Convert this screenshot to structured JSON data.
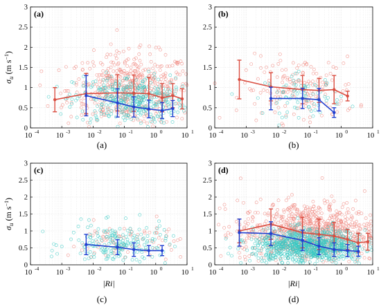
{
  "colors": {
    "red": "#d94c3f",
    "blue": "#1f3fd1",
    "cyan": "#37c9c3",
    "salmon": "#f0867e",
    "grid": "#d9d9d9"
  },
  "shared": {
    "ylabel_sym": "σ",
    "ylabel_sub": "u",
    "ylabel_unit": " (m s",
    "ylabel_exp": "−1",
    "ylabel_close": ")",
    "xlabel": "|Ri|",
    "x_ticks": [
      "10",
      "10",
      "10",
      "10",
      "10",
      "10"
    ],
    "x_exps": [
      "-4",
      "-3",
      "-2",
      "-1",
      "0",
      "1"
    ],
    "y_ticks": [
      "0",
      "0.5",
      "1",
      "1.5",
      "2",
      "2.5",
      "3"
    ]
  },
  "chart_data": [
    {
      "type": "scatter",
      "panel_label": "(a)",
      "caption": "(a)",
      "xscale": "log",
      "xlim": [
        0.0001,
        10
      ],
      "ylim": [
        0,
        3
      ],
      "grid": true,
      "cloud": {
        "red": {
          "center_logx": -0.8,
          "spread_logx": 1.0,
          "y_mean": 0.95,
          "y_sd": 0.45,
          "n": 520
        },
        "cyan": {
          "center_logx": -0.8,
          "spread_logx": 0.9,
          "y_mean": 0.7,
          "y_sd": 0.3,
          "n": 380
        }
      },
      "series": [
        {
          "color": "red",
          "x": [
            0.0006,
            0.006,
            0.06,
            0.2,
            0.6,
            1.6,
            3.5,
            7
          ],
          "y": [
            0.7,
            0.85,
            0.87,
            0.86,
            0.85,
            0.75,
            0.8,
            0.72
          ],
          "err": [
            0.3,
            0.5,
            0.45,
            0.45,
            0.4,
            0.35,
            0.3,
            0.25
          ]
        },
        {
          "color": "blue",
          "x": [
            0.006,
            0.06,
            0.2,
            0.6,
            1.6,
            3.5
          ],
          "y": [
            0.8,
            0.62,
            0.52,
            0.47,
            0.43,
            0.48
          ],
          "err": [
            0.5,
            0.35,
            0.25,
            0.22,
            0.2,
            0.2
          ]
        }
      ]
    },
    {
      "type": "scatter",
      "panel_label": "(b)",
      "caption": "(b)",
      "xscale": "log",
      "xlim": [
        0.0001,
        10
      ],
      "ylim": [
        0,
        3
      ],
      "grid": true,
      "cloud": {
        "red": {
          "center_logx": -1.3,
          "spread_logx": 0.9,
          "y_mean": 0.95,
          "y_sd": 0.4,
          "n": 170
        },
        "cyan": {
          "center_logx": -1.2,
          "spread_logx": 0.6,
          "y_mean": 0.8,
          "y_sd": 0.25,
          "n": 80
        }
      },
      "series": [
        {
          "color": "red",
          "x": [
            0.0006,
            0.006,
            0.06,
            0.2,
            0.6,
            1.6
          ],
          "y": [
            1.2,
            1.02,
            0.95,
            0.93,
            0.95,
            0.79
          ],
          "err": [
            0.48,
            0.35,
            0.35,
            0.3,
            0.35,
            0.12
          ]
        },
        {
          "color": "blue",
          "x": [
            0.006,
            0.06,
            0.2,
            0.6
          ],
          "y": [
            0.73,
            0.73,
            0.7,
            0.38
          ],
          "err": [
            0.28,
            0.25,
            0.28,
            0.12
          ]
        }
      ]
    },
    {
      "type": "scatter",
      "panel_label": "(c)",
      "caption": "(c)",
      "xscale": "log",
      "xlim": [
        0.0001,
        10
      ],
      "ylim": [
        0,
        3
      ],
      "grid": true,
      "cloud": {
        "red": {
          "center_logx": -1.0,
          "spread_logx": 0.9,
          "y_mean": 0.65,
          "y_sd": 0.3,
          "n": 90
        },
        "cyan": {
          "center_logx": -1.2,
          "spread_logx": 0.8,
          "y_mean": 0.6,
          "y_sd": 0.3,
          "n": 200
        }
      },
      "series": [
        {
          "color": "blue",
          "x": [
            0.006,
            0.06,
            0.2,
            0.6,
            1.6
          ],
          "y": [
            0.6,
            0.52,
            0.45,
            0.42,
            0.42
          ],
          "err": [
            0.3,
            0.22,
            0.2,
            0.15,
            0.15
          ]
        }
      ]
    },
    {
      "type": "scatter",
      "panel_label": "(d)",
      "caption": "(d)",
      "xscale": "log",
      "xlim": [
        0.0001,
        10
      ],
      "ylim": [
        0,
        3
      ],
      "grid": true,
      "cloud": {
        "red": {
          "center_logx": -1.0,
          "spread_logx": 1.1,
          "y_mean": 0.95,
          "y_sd": 0.45,
          "n": 900
        },
        "cyan": {
          "center_logx": -1.0,
          "spread_logx": 0.9,
          "y_mean": 0.55,
          "y_sd": 0.25,
          "n": 900
        }
      },
      "series": [
        {
          "color": "red",
          "x": [
            0.0006,
            0.006,
            0.06,
            0.2,
            0.6,
            1.6,
            3.5,
            7
          ],
          "y": [
            1.0,
            1.2,
            0.95,
            0.9,
            0.85,
            0.75,
            0.65,
            0.68
          ],
          "err": [
            0.35,
            0.45,
            0.45,
            0.45,
            0.4,
            0.3,
            0.28,
            0.25
          ]
        },
        {
          "color": "blue",
          "x": [
            0.0006,
            0.006,
            0.06,
            0.2,
            0.6,
            1.6,
            3.5
          ],
          "y": [
            0.95,
            0.92,
            0.72,
            0.55,
            0.45,
            0.42,
            0.4
          ],
          "err": [
            0.4,
            0.35,
            0.3,
            0.25,
            0.2,
            0.18,
            0.15
          ]
        }
      ]
    }
  ]
}
